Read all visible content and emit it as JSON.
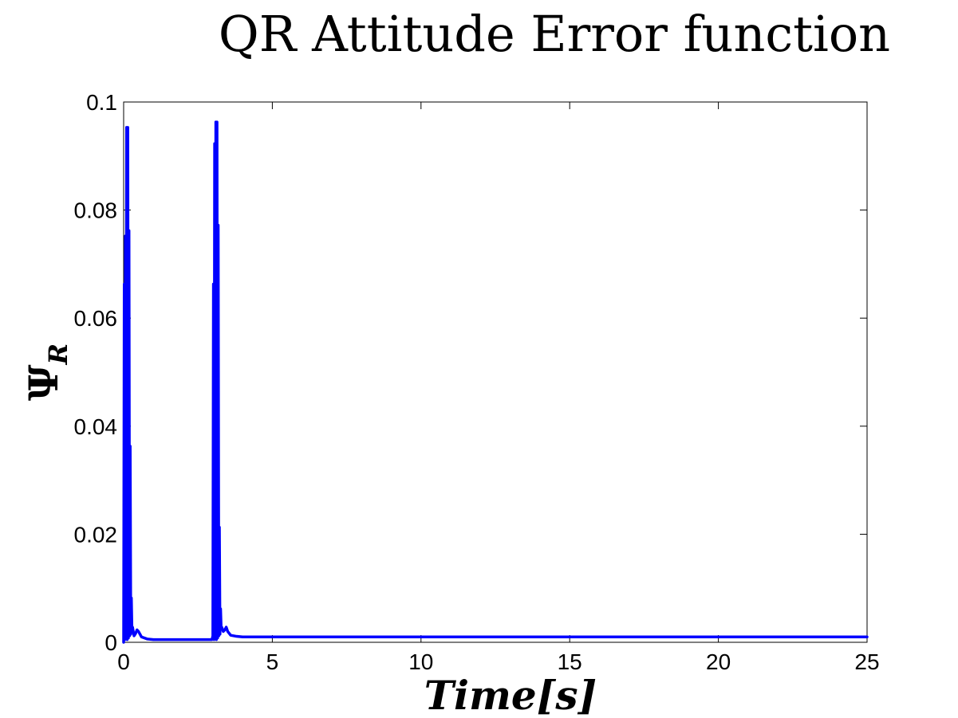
{
  "chart_data": {
    "type": "line",
    "title": "QR Attitude Error function",
    "xlabel": "Time[s]",
    "ylabel": "ΨR",
    "ylabel_main": "Ψ",
    "ylabel_sub": "R",
    "xlim": [
      0,
      25
    ],
    "ylim": [
      0,
      0.1
    ],
    "x_ticks": [
      0,
      5,
      10,
      15,
      20,
      25
    ],
    "x_tick_labels": [
      "0",
      "5",
      "10",
      "15",
      "20",
      "25"
    ],
    "y_ticks": [
      0,
      0.02,
      0.04,
      0.06,
      0.08,
      0.1
    ],
    "y_tick_labels": [
      "0",
      "0.02",
      "0.04",
      "0.06",
      "0.08",
      "0.1"
    ],
    "grid": false,
    "legend": "none",
    "series": [
      {
        "color": "#0000ff",
        "x": [
          0,
          0.02,
          0.04,
          0.06,
          0.08,
          0.1,
          0.12,
          0.14,
          0.16,
          0.18,
          0.2,
          0.22,
          0.24,
          0.26,
          0.28,
          0.3,
          0.35,
          0.4,
          0.45,
          0.5,
          0.6,
          0.8,
          1.0,
          1.5,
          2.0,
          2.5,
          2.97,
          3.0,
          3.02,
          3.04,
          3.06,
          3.08,
          3.1,
          3.12,
          3.14,
          3.16,
          3.18,
          3.2,
          3.22,
          3.24,
          3.26,
          3.28,
          3.3,
          3.35,
          3.4,
          3.45,
          3.5,
          3.6,
          3.8,
          4.0,
          5.0,
          10.0,
          15.0,
          20.0,
          25.0
        ],
        "y": [
          0.0,
          0.0663,
          0.0005,
          0.0752,
          0.001,
          0.0953,
          0.0005,
          0.0953,
          0.0008,
          0.0762,
          0.0012,
          0.0363,
          0.0015,
          0.0082,
          0.002,
          0.0028,
          0.0012,
          0.0016,
          0.0023,
          0.002,
          0.001,
          0.0006,
          0.0005,
          0.0005,
          0.0005,
          0.0005,
          0.0005,
          0.0012,
          0.0663,
          0.0005,
          0.0923,
          0.0012,
          0.0963,
          0.0005,
          0.0963,
          0.0008,
          0.0772,
          0.0012,
          0.0213,
          0.0015,
          0.0062,
          0.0025,
          0.0028,
          0.002,
          0.0023,
          0.0028,
          0.002,
          0.0013,
          0.0011,
          0.001,
          0.001,
          0.001,
          0.001,
          0.001,
          0.001
        ]
      }
    ]
  }
}
